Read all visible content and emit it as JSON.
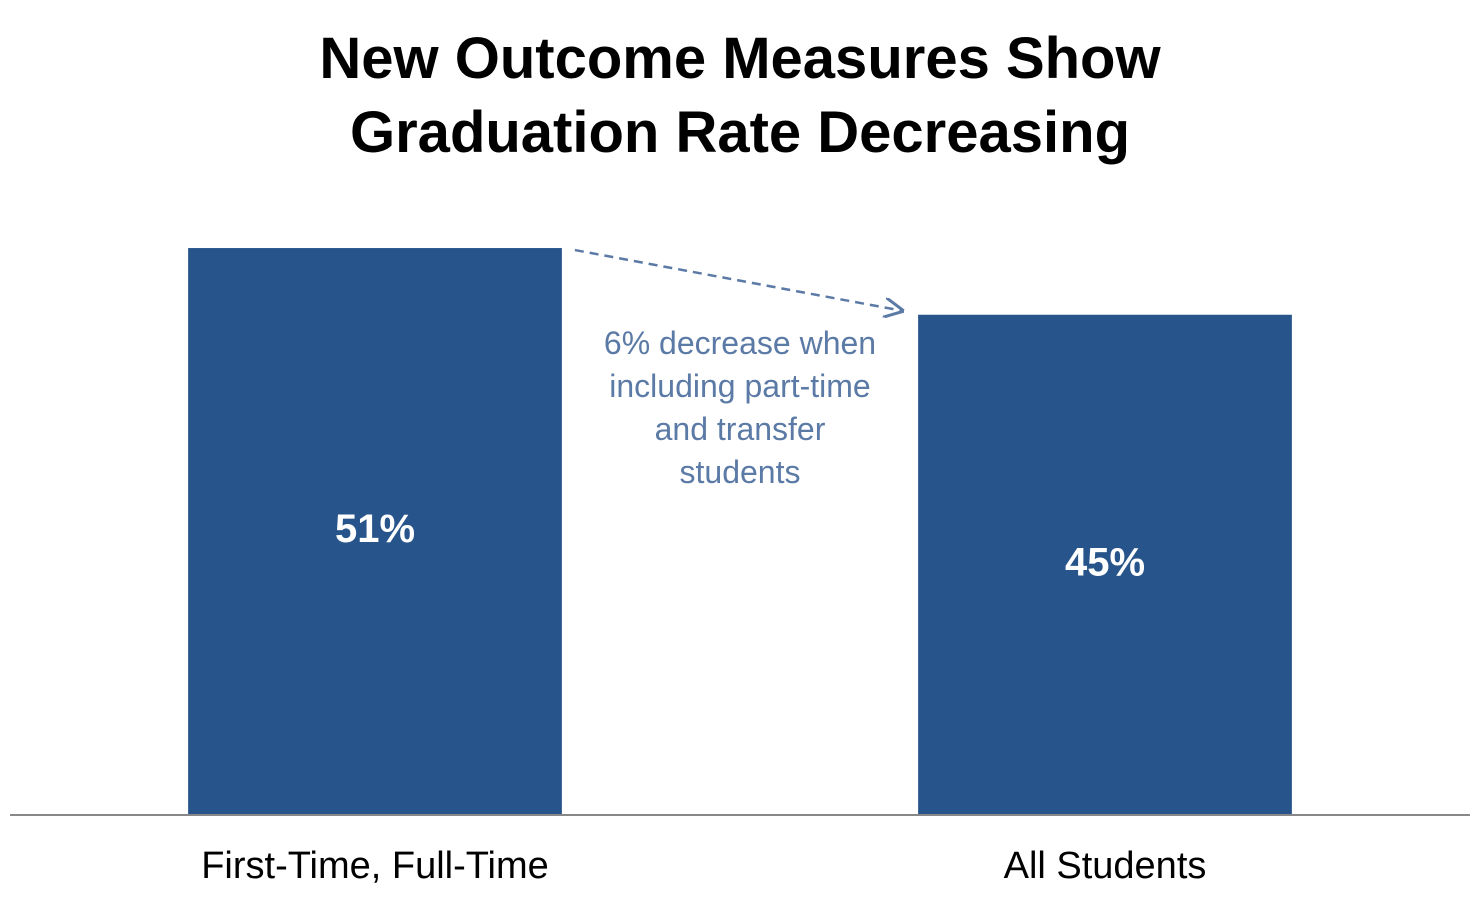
{
  "chart_data": {
    "type": "bar",
    "title": "New Outcome Measures Show Graduation Rate Decreasing",
    "annotation": "6% decrease when including part-time and transfer students",
    "categories": [
      "First-Time, Full-Time",
      "All Students"
    ],
    "values": [
      51,
      45
    ],
    "value_labels": [
      "51%",
      "45%"
    ],
    "color": "#27548a",
    "ylim": [
      0,
      60
    ],
    "grid": false
  }
}
